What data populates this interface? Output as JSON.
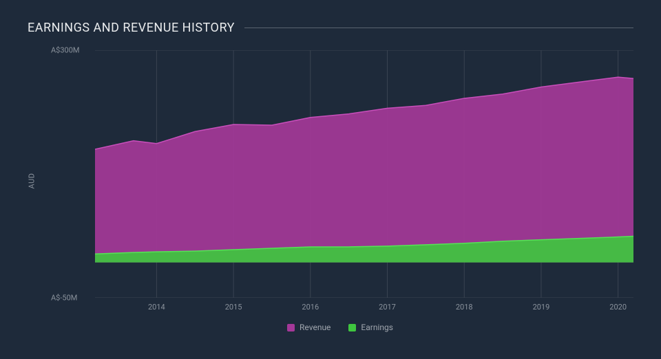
{
  "chart": {
    "type": "area",
    "title": "EARNINGS AND REVENUE HISTORY",
    "background_color": "#1e2a3a",
    "grid_color": "#3a4452",
    "text_color": "#8a929c",
    "title_color": "#e8eaec",
    "title_fontsize": 18,
    "tick_fontsize": 11,
    "legend_fontsize": 12,
    "y_axis_label": "AUD",
    "y_ticks": [
      {
        "value": 300,
        "label": "A$300M"
      },
      {
        "value": -50,
        "label": "A$-50M"
      }
    ],
    "ylim": [
      -50,
      300
    ],
    "x_years": [
      2013.2,
      2014,
      2015,
      2016,
      2017,
      2018,
      2019,
      2020,
      2020.2
    ],
    "x_tick_labels": [
      "2014",
      "2015",
      "2016",
      "2017",
      "2018",
      "2019",
      "2020"
    ],
    "x_tick_positions": [
      2014,
      2015,
      2016,
      2017,
      2018,
      2019,
      2020
    ],
    "xlim": [
      2013.2,
      2020.2
    ],
    "series": [
      {
        "name": "Revenue",
        "color": "#a43898",
        "stroke": "#c94fbb",
        "values": [
          160,
          172,
          168,
          185,
          195,
          194,
          205,
          210,
          218,
          222,
          232,
          238,
          248,
          255,
          262,
          260
        ]
      },
      {
        "name": "Earnings",
        "color": "#3fc63f",
        "stroke": "#56e356",
        "values": [
          12,
          14,
          15,
          16,
          18,
          20,
          22,
          22,
          23,
          25,
          27,
          30,
          32,
          34,
          36,
          37
        ]
      }
    ],
    "series_x": [
      2013.2,
      2013.7,
      2014,
      2014.5,
      2015,
      2015.5,
      2016,
      2016.5,
      2017,
      2017.5,
      2018,
      2018.5,
      2019,
      2019.5,
      2020,
      2020.2
    ],
    "legend": [
      {
        "label": "Revenue",
        "color": "#a43898"
      },
      {
        "label": "Earnings",
        "color": "#3fc63f"
      }
    ]
  }
}
